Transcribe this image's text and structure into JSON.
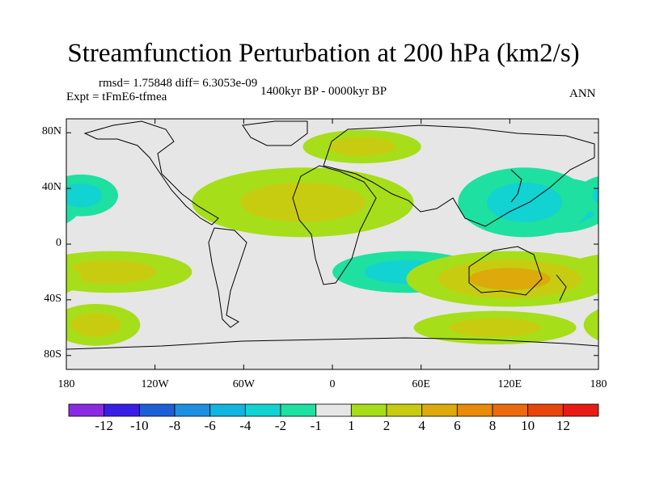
{
  "title": "Streamfunction Perturbation at 200 hPa (km2/s)",
  "stats": "rmsd= 1.75848 diff= 6.3053e-09",
  "experiment": "Expt = tFmE6-tfmea",
  "period": "1400kyr BP - 0000kyr BP",
  "season": "ANN",
  "y_axis_labels": [
    "80N",
    "40N",
    "0",
    "40S",
    "80S"
  ],
  "x_axis_labels": [
    "180",
    "120W",
    "60W",
    "0",
    "60E",
    "120E",
    "180"
  ],
  "colorbar": {
    "labels": [
      "-12",
      "-10",
      "-8",
      "-6",
      "-4",
      "-2",
      "-1",
      "1",
      "2",
      "4",
      "6",
      "8",
      "10",
      "12"
    ],
    "colors": [
      "#8a2be2",
      "#3b1ee6",
      "#1d5fd6",
      "#1e90e0",
      "#12b4e0",
      "#12d2d2",
      "#1ee0a0",
      "#e6e6e6",
      "#a6de1a",
      "#c8cc10",
      "#dcaa0a",
      "#e88a0a",
      "#ea6a0c",
      "#e8440c",
      "#e81c14"
    ]
  },
  "chart_data": {
    "type": "heatmap",
    "title": "Streamfunction Perturbation at 200 hPa (km2/s)",
    "x_range": [
      -180,
      180
    ],
    "y_range": [
      -90,
      90
    ],
    "xticks": [
      -180,
      -120,
      -60,
      0,
      60,
      120,
      180
    ],
    "yticks": [
      80,
      40,
      0,
      -40,
      -80
    ],
    "levels": [
      -12,
      -10,
      -8,
      -6,
      -4,
      -2,
      -1,
      1,
      2,
      4,
      6,
      8,
      10,
      12
    ],
    "features": [
      {
        "name": "north-africa-high",
        "lon": -5,
        "lat": 25,
        "value": 7,
        "rx": 48,
        "ry": 18
      },
      {
        "name": "north-atlantic-ridge",
        "lon": -20,
        "lat": 30,
        "value": 3,
        "rx": 75,
        "ry": 25
      },
      {
        "name": "east-asia-low",
        "lon": 150,
        "lat": 28,
        "value": -7,
        "rx": 40,
        "ry": 20
      },
      {
        "name": "west-pacific-trough",
        "lon": 130,
        "lat": 30,
        "value": -3,
        "rx": 45,
        "ry": 25
      },
      {
        "name": "africa-indian-ocean-low",
        "lon": 50,
        "lat": -20,
        "value": -3,
        "rx": 50,
        "ry": 15
      },
      {
        "name": "south-pacific-high",
        "lon": -150,
        "lat": -20,
        "value": 3,
        "rx": 55,
        "ry": 15
      },
      {
        "name": "australia-high",
        "lon": 120,
        "lat": -25,
        "value": 4,
        "rx": 70,
        "ry": 20
      },
      {
        "name": "europe-ridge",
        "lon": 20,
        "lat": 70,
        "value": 2,
        "rx": 40,
        "ry": 12
      },
      {
        "name": "north-pacific-low",
        "lon": -170,
        "lat": 35,
        "value": -2,
        "rx": 25,
        "ry": 15
      },
      {
        "name": "south-pacific-ridge",
        "lon": -160,
        "lat": -58,
        "value": 2,
        "rx": 30,
        "ry": 15
      },
      {
        "name": "southern-ocean-ridge",
        "lon": 110,
        "lat": -60,
        "value": 2,
        "rx": 55,
        "ry": 12
      }
    ]
  }
}
